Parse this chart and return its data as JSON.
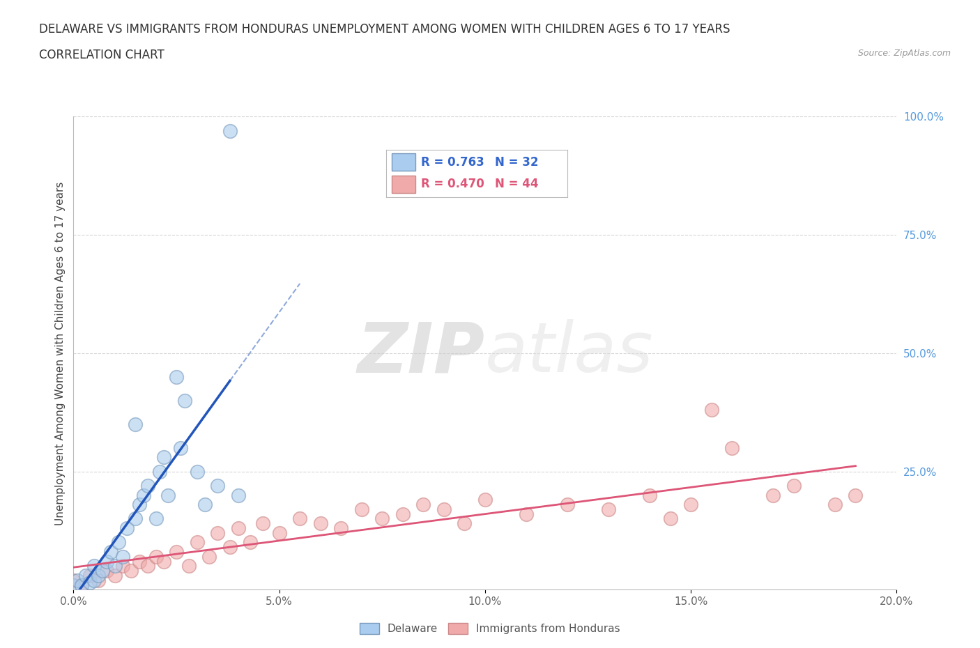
{
  "title_line1": "DELAWARE VS IMMIGRANTS FROM HONDURAS UNEMPLOYMENT AMONG WOMEN WITH CHILDREN AGES 6 TO 17 YEARS",
  "title_line2": "CORRELATION CHART",
  "source_text": "Source: ZipAtlas.com",
  "ylabel": "Unemployment Among Women with Children Ages 6 to 17 years",
  "xlim": [
    0.0,
    0.2
  ],
  "ylim": [
    0.0,
    1.0
  ],
  "xtick_labels": [
    "0.0%",
    "5.0%",
    "10.0%",
    "15.0%",
    "20.0%"
  ],
  "xtick_vals": [
    0.0,
    0.05,
    0.1,
    0.15,
    0.2
  ],
  "ytick_right_labels": [
    "100.0%",
    "75.0%",
    "50.0%",
    "25.0%"
  ],
  "ytick_right_vals": [
    1.0,
    0.75,
    0.5,
    0.25
  ],
  "watermark_zip": "ZIP",
  "watermark_atlas": "atlas",
  "delaware_color": "#AACCEE",
  "delaware_edge": "#7799BB",
  "honduras_color": "#F0AAAA",
  "honduras_edge": "#CC8888",
  "delaware_line_color": "#2255BB",
  "honduras_line_color": "#DD5577",
  "legend_R_delaware": "R = 0.763",
  "legend_N_delaware": "N = 32",
  "legend_R_honduras": "R = 0.470",
  "legend_N_honduras": "N = 44",
  "delaware_x": [
    0.0,
    0.001,
    0.002,
    0.003,
    0.004,
    0.005,
    0.005,
    0.006,
    0.007,
    0.008,
    0.009,
    0.01,
    0.011,
    0.012,
    0.013,
    0.015,
    0.015,
    0.016,
    0.017,
    0.018,
    0.02,
    0.021,
    0.022,
    0.023,
    0.025,
    0.026,
    0.027,
    0.03,
    0.032,
    0.035,
    0.038,
    0.04
  ],
  "delaware_y": [
    0.01,
    0.02,
    0.01,
    0.03,
    0.015,
    0.02,
    0.05,
    0.03,
    0.04,
    0.06,
    0.08,
    0.05,
    0.1,
    0.07,
    0.13,
    0.15,
    0.35,
    0.18,
    0.2,
    0.22,
    0.15,
    0.25,
    0.28,
    0.2,
    0.45,
    0.3,
    0.4,
    0.25,
    0.18,
    0.22,
    0.97,
    0.2
  ],
  "honduras_x": [
    0.0,
    0.002,
    0.004,
    0.006,
    0.008,
    0.01,
    0.012,
    0.014,
    0.016,
    0.018,
    0.02,
    0.022,
    0.025,
    0.028,
    0.03,
    0.033,
    0.035,
    0.038,
    0.04,
    0.043,
    0.046,
    0.05,
    0.055,
    0.06,
    0.065,
    0.07,
    0.075,
    0.08,
    0.085,
    0.09,
    0.095,
    0.1,
    0.11,
    0.12,
    0.13,
    0.14,
    0.145,
    0.15,
    0.155,
    0.16,
    0.17,
    0.175,
    0.185,
    0.19
  ],
  "honduras_y": [
    0.02,
    0.01,
    0.03,
    0.02,
    0.04,
    0.03,
    0.05,
    0.04,
    0.06,
    0.05,
    0.07,
    0.06,
    0.08,
    0.05,
    0.1,
    0.07,
    0.12,
    0.09,
    0.13,
    0.1,
    0.14,
    0.12,
    0.15,
    0.14,
    0.13,
    0.17,
    0.15,
    0.16,
    0.18,
    0.17,
    0.14,
    0.19,
    0.16,
    0.18,
    0.17,
    0.2,
    0.15,
    0.18,
    0.38,
    0.3,
    0.2,
    0.22,
    0.18,
    0.2
  ],
  "background_color": "#FFFFFF",
  "grid_color": "#CCCCCC"
}
